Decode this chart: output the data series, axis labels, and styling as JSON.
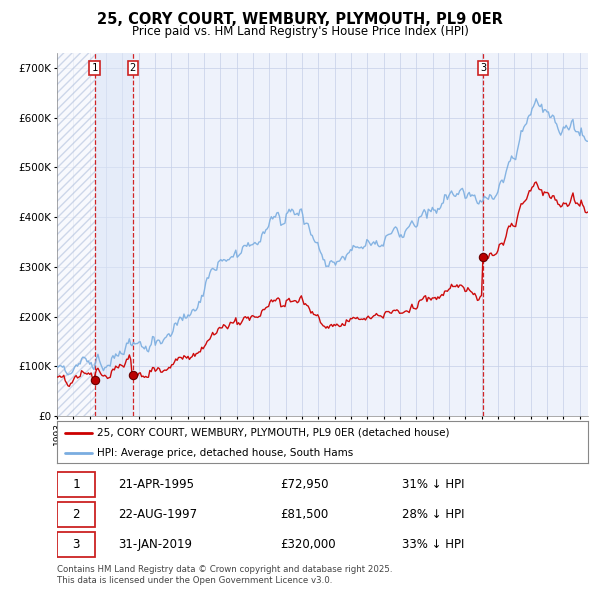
{
  "title": "25, CORY COURT, WEMBURY, PLYMOUTH, PL9 0ER",
  "subtitle": "Price paid vs. HM Land Registry's House Price Index (HPI)",
  "legend_line1": "25, CORY COURT, WEMBURY, PLYMOUTH, PL9 0ER (detached house)",
  "legend_line2": "HPI: Average price, detached house, South Hams",
  "footer": "Contains HM Land Registry data © Crown copyright and database right 2025.\nThis data is licensed under the Open Government Licence v3.0.",
  "transactions": [
    {
      "num": 1,
      "date": "21-APR-1995",
      "year": 1995.3,
      "price": 72950,
      "pct": "31%"
    },
    {
      "num": 2,
      "date": "22-AUG-1997",
      "year": 1997.64,
      "price": 81500,
      "pct": "28%"
    },
    {
      "num": 3,
      "date": "31-JAN-2019",
      "year": 2019.08,
      "price": 320000,
      "pct": "33%"
    }
  ],
  "ylim": [
    0,
    730000
  ],
  "xlim_start": 1993.0,
  "xlim_end": 2025.5,
  "background_color": "#eef2fb",
  "grid_color": "#c5cfe8",
  "line_color_red": "#cc0000",
  "line_color_blue": "#7aade0",
  "vline_color": "#cc0000",
  "title_fontsize": 11,
  "subtitle_fontsize": 9,
  "sale_years": [
    1995.3,
    1997.64,
    2019.08
  ],
  "sale_prices": [
    72950,
    81500,
    320000
  ]
}
